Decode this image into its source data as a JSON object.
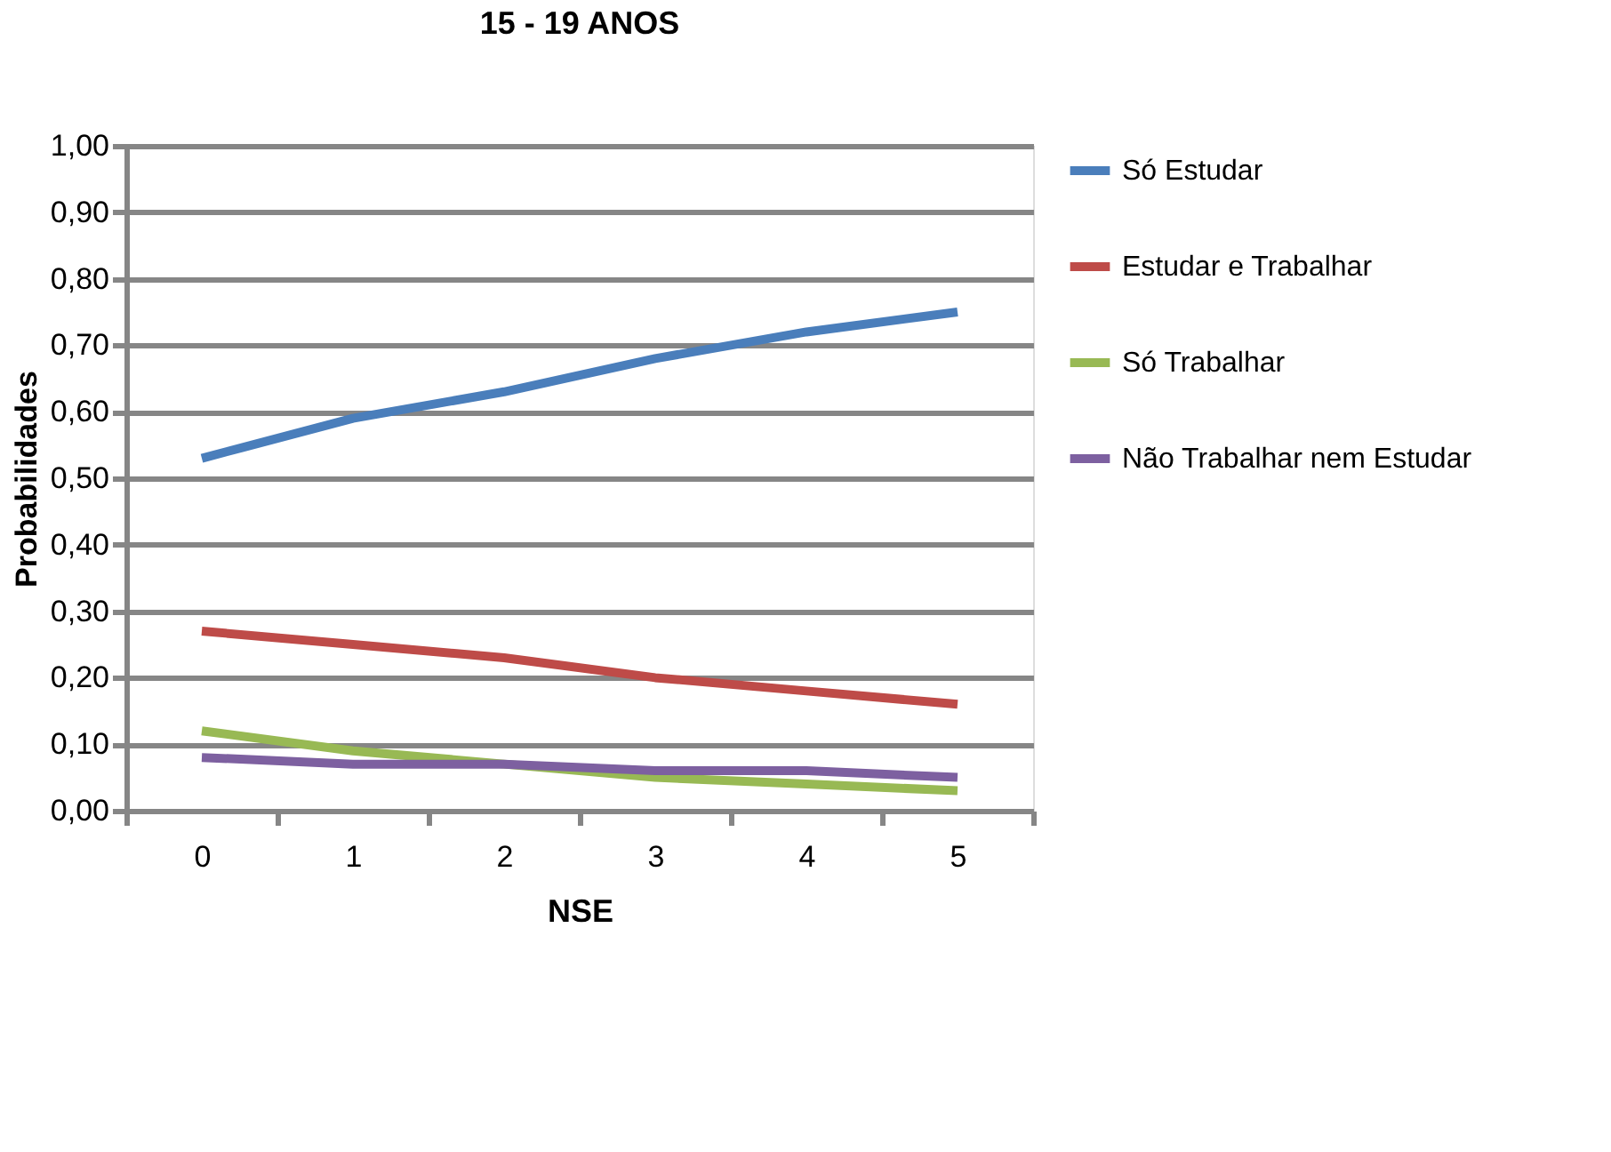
{
  "chart_data": {
    "type": "line",
    "title": "15 - 19 ANOS",
    "xlabel": "NSE",
    "ylabel": "Probabilidades",
    "categories": [
      "0",
      "1",
      "2",
      "3",
      "4",
      "5"
    ],
    "series": [
      {
        "name": "Só Estudar",
        "color": "#4a7ebb",
        "values": [
          0.53,
          0.59,
          0.63,
          0.68,
          0.72,
          0.75
        ]
      },
      {
        "name": "Estudar e Trabalhar",
        "color": "#be4b48",
        "values": [
          0.27,
          0.25,
          0.23,
          0.2,
          0.18,
          0.16
        ]
      },
      {
        "name": "Só Trabalhar",
        "color": "#98b954",
        "values": [
          0.12,
          0.09,
          0.07,
          0.05,
          0.04,
          0.03
        ]
      },
      {
        "name": "Não Trabalhar nem Estudar",
        "color": "#7d60a0",
        "values": [
          0.08,
          0.07,
          0.07,
          0.06,
          0.06,
          0.05
        ]
      }
    ],
    "ylim": [
      0,
      1
    ],
    "yticks": [
      {
        "value": 0,
        "label": "0,00"
      },
      {
        "value": 0.1,
        "label": "0,10"
      },
      {
        "value": 0.2,
        "label": "0,20"
      },
      {
        "value": 0.3,
        "label": "0,30"
      },
      {
        "value": 0.4,
        "label": "0,40"
      },
      {
        "value": 0.5,
        "label": "0,50"
      },
      {
        "value": 0.6,
        "label": "0,60"
      },
      {
        "value": 0.7,
        "label": "0,70"
      },
      {
        "value": 0.8,
        "label": "0,80"
      },
      {
        "value": 0.9,
        "label": "0,90"
      },
      {
        "value": 1,
        "label": "1,00"
      }
    ],
    "grid": "y",
    "legend": "right",
    "marker": "none",
    "line_style": "solid"
  }
}
